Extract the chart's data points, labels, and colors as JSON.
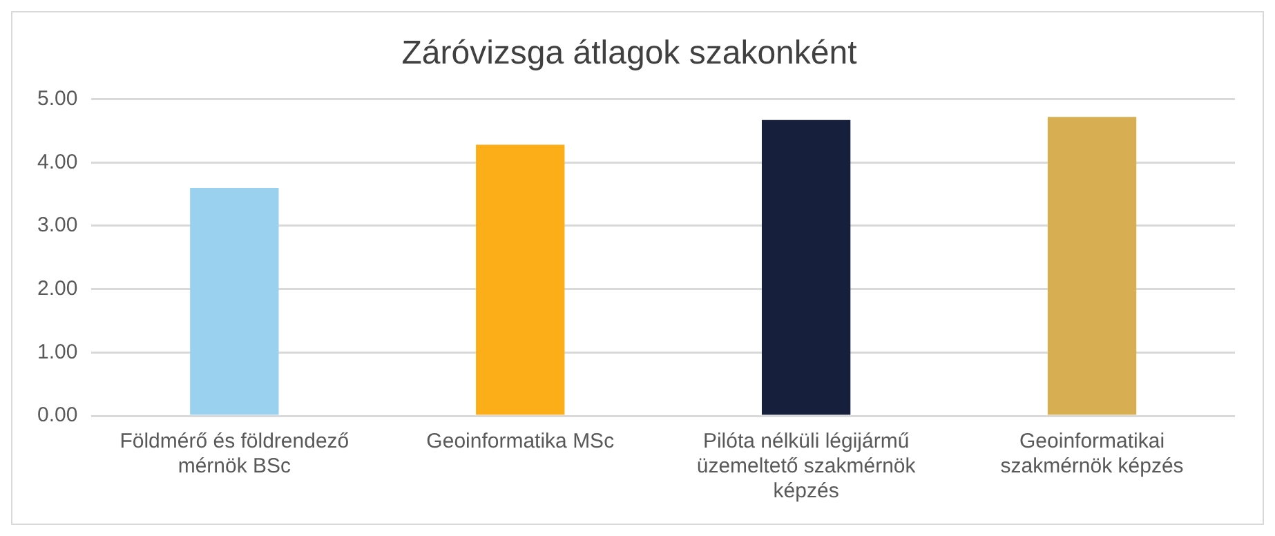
{
  "chart_data": {
    "type": "bar",
    "title": "Záróvizsga átlagok szakonként",
    "categories": [
      "Földmérő és földrendező mérnök BSc",
      "Geoinformatika MSc",
      "Pilóta nélküli légijármű üzemeltető szakmérnök képzés",
      "Geoinformatikai szakmérnök képzés"
    ],
    "values": [
      3.6,
      4.28,
      4.67,
      4.72
    ],
    "colors": [
      "#99d1ef",
      "#fbae17",
      "#161f3b",
      "#d8ae53"
    ],
    "ylim": [
      0,
      5
    ],
    "yticks": [
      {
        "value": 0,
        "label": "0.00"
      },
      {
        "value": 1,
        "label": "1.00"
      },
      {
        "value": 2,
        "label": "2.00"
      },
      {
        "value": 3,
        "label": "3.00"
      },
      {
        "value": 4,
        "label": "4.00"
      },
      {
        "value": 5,
        "label": "5.00"
      }
    ],
    "grid": "y",
    "legend": false
  }
}
